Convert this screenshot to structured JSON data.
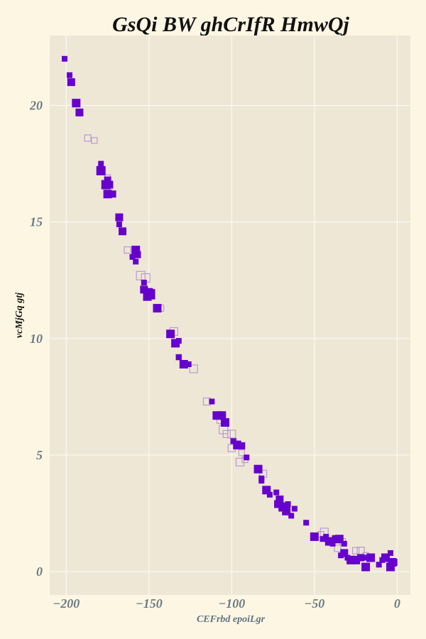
{
  "chart_data": {
    "type": "scatter",
    "title": "GsQi BW  ghCrIfR HmwQj",
    "xlabel": "CEFrbd epoiLgr",
    "ylabel": "vcMjGq gtj",
    "xlim": [
      -210,
      8
    ],
    "ylim": [
      -1,
      23
    ],
    "x_ticks": [
      -200,
      -150,
      -100,
      -50,
      0
    ],
    "x_tick_labels": [
      "−200",
      "−150",
      "−100",
      "−50",
      "0"
    ],
    "y_ticks": [
      0,
      5,
      10,
      15,
      20
    ],
    "y_tick_labels": [
      "0",
      "5",
      "10",
      "15",
      "20"
    ],
    "grid": true,
    "colors": {
      "page_background": "#fdf6e3",
      "plot_background": "#efe7d6",
      "series_a": "#6600cc",
      "series_b": "#b89ad0"
    },
    "series": [
      {
        "marker": "filled-square",
        "color": "#6600cc",
        "points": [
          [
            -201,
            22.0,
            8
          ],
          [
            -198,
            21.3,
            8
          ],
          [
            -197,
            21.0,
            11
          ],
          [
            -194,
            20.1,
            12
          ],
          [
            -192,
            19.7,
            11
          ],
          [
            -179,
            17.5,
            8
          ],
          [
            -179,
            17.2,
            13
          ],
          [
            -175,
            16.8,
            10
          ],
          [
            -176,
            16.6,
            13
          ],
          [
            -174,
            16.6,
            11
          ],
          [
            -175,
            16.2,
            12
          ],
          [
            -172,
            16.2,
            10
          ],
          [
            -168,
            15.2,
            11
          ],
          [
            -168,
            14.9,
            8
          ],
          [
            -166,
            14.6,
            11
          ],
          [
            -158,
            13.8,
            12
          ],
          [
            -160,
            13.5,
            8
          ],
          [
            -157,
            13.6,
            10
          ],
          [
            -158,
            13.3,
            8
          ],
          [
            -153,
            12.4,
            8
          ],
          [
            -153,
            12.1,
            11
          ],
          [
            -150,
            12.0,
            11
          ],
          [
            -148,
            12.0,
            8
          ],
          [
            -151,
            11.8,
            12
          ],
          [
            -148,
            11.8,
            8
          ],
          [
            -145,
            11.3,
            12
          ],
          [
            -137,
            10.2,
            12
          ],
          [
            -134,
            9.8,
            12
          ],
          [
            -132,
            9.9,
            8
          ],
          [
            -132,
            9.2,
            8
          ],
          [
            -129,
            8.9,
            12
          ],
          [
            -126,
            8.9,
            8
          ],
          [
            -112,
            7.3,
            8
          ],
          [
            -109,
            6.7,
            12
          ],
          [
            -106,
            6.7,
            12
          ],
          [
            -104,
            6.4,
            12
          ],
          [
            -99,
            5.6,
            8
          ],
          [
            -97,
            5.4,
            10
          ],
          [
            -94,
            5.4,
            10
          ],
          [
            -96,
            5.5,
            8
          ],
          [
            -91,
            4.9,
            8
          ],
          [
            -84,
            4.4,
            12
          ],
          [
            -82,
            4.0,
            8
          ],
          [
            -82,
            3.9,
            8
          ],
          [
            -79,
            3.5,
            12
          ],
          [
            -77,
            3.3,
            8
          ],
          [
            -73,
            3.4,
            8
          ],
          [
            -71,
            3.1,
            11
          ],
          [
            -72,
            2.9,
            11
          ],
          [
            -69,
            2.8,
            11
          ],
          [
            -70,
            2.7,
            8
          ],
          [
            -67,
            2.6,
            12
          ],
          [
            -66,
            2.9,
            8
          ],
          [
            -64,
            2.4,
            8
          ],
          [
            -62,
            2.7,
            8
          ],
          [
            -55,
            2.1,
            8
          ],
          [
            -50,
            1.5,
            12
          ],
          [
            -45,
            1.4,
            8
          ],
          [
            -43,
            1.5,
            8
          ],
          [
            -41,
            1.3,
            12
          ],
          [
            -39,
            1.2,
            8
          ],
          [
            -37,
            1.4,
            11
          ],
          [
            -35,
            1.4,
            12
          ],
          [
            -32,
            1.2,
            8
          ],
          [
            -34,
            0.7,
            8
          ],
          [
            -32,
            0.8,
            11
          ],
          [
            -30,
            0.6,
            8
          ],
          [
            -28,
            0.5,
            12
          ],
          [
            -25,
            0.5,
            12
          ],
          [
            -22,
            0.6,
            10
          ],
          [
            -20,
            0.6,
            8
          ],
          [
            -19,
            0.2,
            12
          ],
          [
            -16,
            0.6,
            12
          ],
          [
            -11,
            0.3,
            8
          ],
          [
            -9,
            0.5,
            8
          ],
          [
            -7,
            0.6,
            12
          ],
          [
            -4,
            0.8,
            8
          ],
          [
            -3,
            0.4,
            12
          ],
          [
            -4,
            0.2,
            12
          ],
          [
            -2,
            0.4,
            10
          ]
        ]
      },
      {
        "marker": "hollow-square",
        "color": "#b89ad0",
        "points": [
          [
            -187,
            18.6,
            9
          ],
          [
            -183,
            18.5,
            8
          ],
          [
            -175,
            16.9,
            8
          ],
          [
            -163,
            13.8,
            9
          ],
          [
            -155,
            12.7,
            12
          ],
          [
            -152,
            12.6,
            12
          ],
          [
            -143,
            11.3,
            9
          ],
          [
            -135,
            10.3,
            11
          ],
          [
            -132,
            9.2,
            8
          ],
          [
            -123,
            8.7,
            11
          ],
          [
            -115,
            7.3,
            10
          ],
          [
            -107,
            6.5,
            9
          ],
          [
            -105,
            6.1,
            12
          ],
          [
            -103,
            5.9,
            10
          ],
          [
            -100,
            5.9,
            11
          ],
          [
            -99,
            5.6,
            8
          ],
          [
            -100,
            5.3,
            10
          ],
          [
            -94,
            5.1,
            8
          ],
          [
            -95,
            4.7,
            11
          ],
          [
            -92,
            4.8,
            8
          ],
          [
            -81,
            4.2,
            10
          ],
          [
            -46,
            1.6,
            8
          ],
          [
            -44,
            1.7,
            11
          ],
          [
            -36,
            1.0,
            9
          ],
          [
            -33,
            1.3,
            8
          ],
          [
            -25,
            0.9,
            9
          ],
          [
            -22,
            0.9,
            10
          ],
          [
            -19,
            0.7,
            8
          ]
        ]
      }
    ]
  }
}
